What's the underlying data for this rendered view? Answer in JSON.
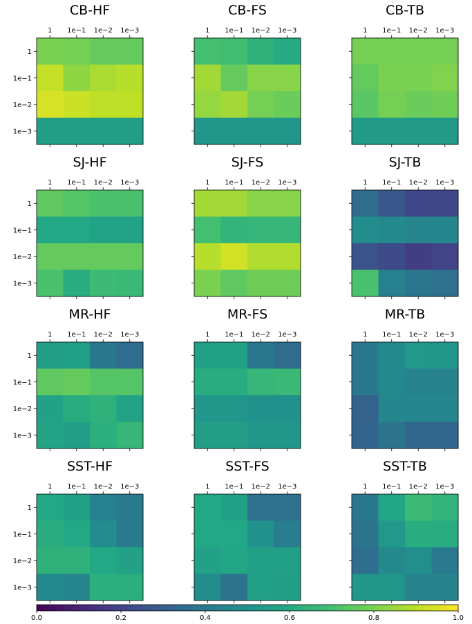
{
  "chart_data": {
    "type": "heatmap",
    "rows": [
      "1",
      "1e−1",
      "1e−2",
      "1e−3"
    ],
    "cols": [
      "1",
      "1e−1",
      "1e−2",
      "1e−3"
    ],
    "colormap": "viridis",
    "colorbar": {
      "range": [
        0.0,
        1.0
      ],
      "ticks": [
        0.0,
        0.2,
        0.4,
        0.6,
        0.8,
        1.0
      ],
      "tick_labels": [
        "0.0",
        "0.2",
        "0.4",
        "0.6",
        "0.8",
        "1.0"
      ],
      "orientation": "horizontal",
      "placement": "bottom"
    },
    "panels": [
      {
        "title": "CB-HF",
        "values": [
          [
            0.8,
            0.79,
            0.76,
            0.76
          ],
          [
            0.91,
            0.83,
            0.87,
            0.89
          ],
          [
            0.94,
            0.92,
            0.9,
            0.9
          ],
          [
            0.55,
            0.55,
            0.55,
            0.55
          ]
        ]
      },
      {
        "title": "CB-FS",
        "values": [
          [
            0.7,
            0.69,
            0.64,
            0.61
          ],
          [
            0.86,
            0.76,
            0.82,
            0.82
          ],
          [
            0.84,
            0.86,
            0.79,
            0.77
          ],
          [
            0.52,
            0.52,
            0.52,
            0.52
          ]
        ]
      },
      {
        "title": "CB-TB",
        "values": [
          [
            0.79,
            0.79,
            0.79,
            0.79
          ],
          [
            0.76,
            0.8,
            0.8,
            0.81
          ],
          [
            0.74,
            0.79,
            0.77,
            0.78
          ],
          [
            0.54,
            0.54,
            0.54,
            0.54
          ]
        ]
      },
      {
        "title": "SJ-HF",
        "values": [
          [
            0.75,
            0.73,
            0.71,
            0.71
          ],
          [
            0.6,
            0.6,
            0.58,
            0.58
          ],
          [
            0.76,
            0.76,
            0.76,
            0.76
          ],
          [
            0.71,
            0.62,
            0.68,
            0.67
          ]
        ]
      },
      {
        "title": "SJ-FS",
        "values": [
          [
            0.86,
            0.86,
            0.82,
            0.82
          ],
          [
            0.7,
            0.65,
            0.66,
            0.66
          ],
          [
            0.89,
            0.93,
            0.88,
            0.88
          ],
          [
            0.8,
            0.75,
            0.78,
            0.78
          ]
        ]
      },
      {
        "title": "SJ-TB",
        "values": [
          [
            0.35,
            0.27,
            0.21,
            0.21
          ],
          [
            0.48,
            0.47,
            0.45,
            0.46
          ],
          [
            0.26,
            0.23,
            0.18,
            0.2
          ],
          [
            0.71,
            0.43,
            0.39,
            0.37
          ]
        ]
      },
      {
        "title": "MR-HF",
        "values": [
          [
            0.55,
            0.56,
            0.4,
            0.35
          ],
          [
            0.75,
            0.76,
            0.73,
            0.73
          ],
          [
            0.57,
            0.62,
            0.64,
            0.58
          ],
          [
            0.58,
            0.55,
            0.63,
            0.66
          ]
        ]
      },
      {
        "title": "MR-FS",
        "values": [
          [
            0.57,
            0.57,
            0.4,
            0.35
          ],
          [
            0.62,
            0.62,
            0.66,
            0.67
          ],
          [
            0.52,
            0.52,
            0.5,
            0.5
          ],
          [
            0.55,
            0.55,
            0.52,
            0.52
          ]
        ]
      },
      {
        "title": "MR-TB",
        "values": [
          [
            0.4,
            0.47,
            0.53,
            0.52
          ],
          [
            0.4,
            0.47,
            0.44,
            0.44
          ],
          [
            0.31,
            0.46,
            0.46,
            0.46
          ],
          [
            0.32,
            0.38,
            0.33,
            0.33
          ]
        ]
      },
      {
        "title": "SST-HF",
        "values": [
          [
            0.6,
            0.56,
            0.43,
            0.41
          ],
          [
            0.62,
            0.6,
            0.48,
            0.41
          ],
          [
            0.64,
            0.64,
            0.6,
            0.57
          ],
          [
            0.47,
            0.45,
            0.63,
            0.63
          ]
        ]
      },
      {
        "title": "SST-FS",
        "values": [
          [
            0.6,
            0.56,
            0.37,
            0.37
          ],
          [
            0.6,
            0.6,
            0.5,
            0.42
          ],
          [
            0.57,
            0.59,
            0.56,
            0.56
          ],
          [
            0.48,
            0.38,
            0.56,
            0.55
          ]
        ]
      },
      {
        "title": "SST-TB",
        "values": [
          [
            0.4,
            0.59,
            0.68,
            0.65
          ],
          [
            0.38,
            0.53,
            0.62,
            0.62
          ],
          [
            0.36,
            0.47,
            0.49,
            0.41
          ],
          [
            0.52,
            0.52,
            0.44,
            0.44
          ]
        ]
      }
    ]
  }
}
